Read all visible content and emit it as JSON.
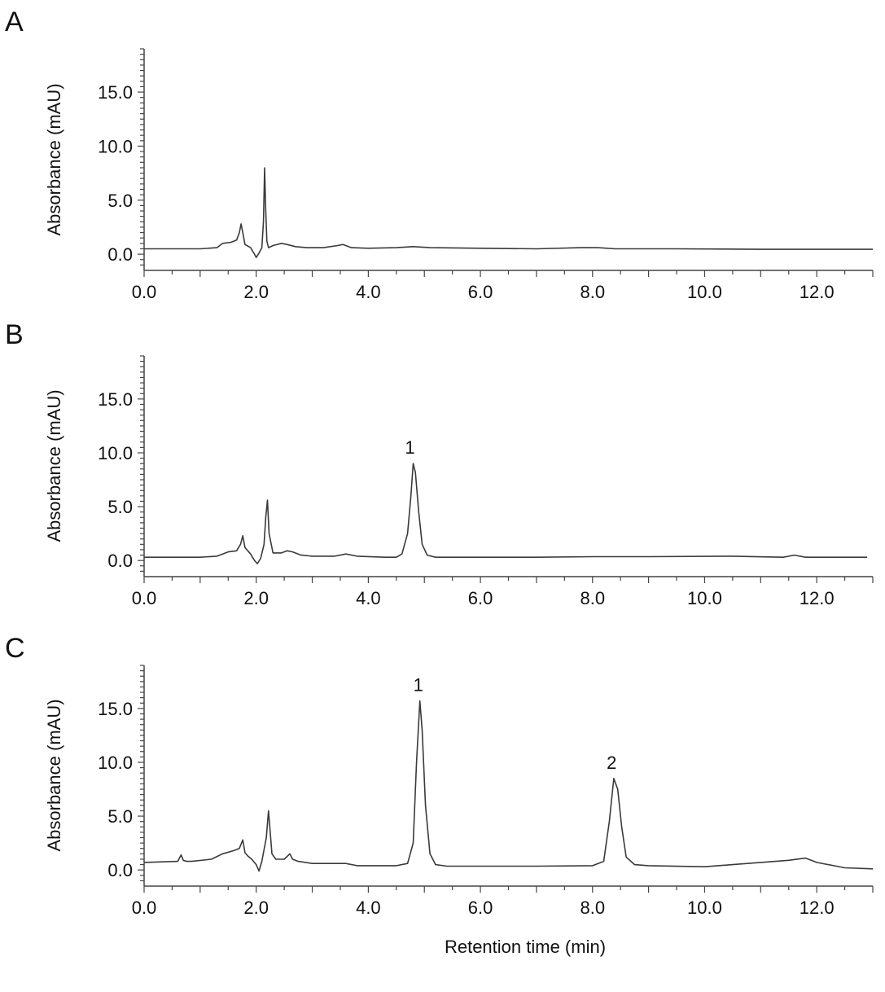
{
  "chart_data": [
    {
      "panel": "A",
      "type": "line",
      "xlabel": "",
      "ylabel": "Absorbance (mAU)",
      "xlim": [
        0,
        13
      ],
      "ylim": [
        -1.5,
        19
      ],
      "xticks": [
        {
          "v": 0,
          "label": "0.0"
        },
        {
          "v": 2,
          "label": "2.0"
        },
        {
          "v": 4,
          "label": "4.0"
        },
        {
          "v": 6,
          "label": "6.0"
        },
        {
          "v": 8,
          "label": "8.0"
        },
        {
          "v": 10,
          "label": "10.0"
        },
        {
          "v": 12,
          "label": "12.0"
        }
      ],
      "yticks": [
        {
          "v": 0,
          "label": "0.0"
        },
        {
          "v": 5,
          "label": "5.0"
        },
        {
          "v": 10,
          "label": "10.0"
        },
        {
          "v": 15,
          "label": "15.0"
        }
      ],
      "series": [
        {
          "color": "#3a3a3a",
          "x": [
            0.0,
            1.0,
            1.3,
            1.4,
            1.55,
            1.65,
            1.7,
            1.73,
            1.76,
            1.8,
            1.9,
            1.97,
            2.0,
            2.05,
            2.1,
            2.13,
            2.15,
            2.17,
            2.19,
            2.22,
            2.3,
            2.45,
            2.55,
            2.7,
            2.9,
            3.2,
            3.45,
            3.55,
            3.7,
            4.0,
            4.5,
            4.8,
            5.1,
            6.0,
            7.0,
            7.8,
            8.1,
            8.4,
            9.5,
            11.0,
            12.0,
            12.5,
            13.0
          ],
          "y": [
            0.5,
            0.5,
            0.6,
            1.0,
            1.1,
            1.3,
            2.0,
            2.8,
            2.0,
            0.9,
            0.6,
            0.0,
            -0.3,
            0.1,
            0.6,
            3.0,
            8.0,
            4.0,
            1.2,
            0.6,
            0.8,
            1.0,
            0.9,
            0.7,
            0.6,
            0.6,
            0.8,
            0.9,
            0.6,
            0.55,
            0.6,
            0.7,
            0.6,
            0.55,
            0.5,
            0.6,
            0.6,
            0.5,
            0.5,
            0.45,
            0.45,
            0.45,
            0.45
          ]
        }
      ],
      "annotations": []
    },
    {
      "panel": "B",
      "type": "line",
      "xlabel": "",
      "ylabel": "Absorbance (mAU)",
      "xlim": [
        0,
        13
      ],
      "ylim": [
        -1.5,
        19
      ],
      "xticks": [
        {
          "v": 0,
          "label": "0.0"
        },
        {
          "v": 2,
          "label": "2.0"
        },
        {
          "v": 4,
          "label": "4.0"
        },
        {
          "v": 6,
          "label": "6.0"
        },
        {
          "v": 8,
          "label": "8.0"
        },
        {
          "v": 10,
          "label": "10.0"
        },
        {
          "v": 12,
          "label": "12.0"
        }
      ],
      "yticks": [
        {
          "v": 0,
          "label": "0.0"
        },
        {
          "v": 5,
          "label": "5.0"
        },
        {
          "v": 10,
          "label": "10.0"
        },
        {
          "v": 15,
          "label": "15.0"
        }
      ],
      "series": [
        {
          "color": "#3a3a3a",
          "x": [
            0.0,
            1.0,
            1.3,
            1.5,
            1.65,
            1.72,
            1.76,
            1.8,
            1.9,
            1.97,
            2.02,
            2.08,
            2.14,
            2.17,
            2.2,
            2.23,
            2.3,
            2.45,
            2.55,
            2.65,
            2.8,
            3.0,
            3.4,
            3.6,
            3.8,
            4.3,
            4.5,
            4.6,
            4.7,
            4.76,
            4.8,
            4.84,
            4.9,
            4.96,
            5.05,
            5.2,
            6.0,
            7.0,
            8.0,
            9.0,
            10.5,
            11.4,
            11.6,
            11.8,
            12.5,
            12.9
          ],
          "y": [
            0.3,
            0.3,
            0.4,
            0.8,
            0.9,
            1.5,
            2.3,
            1.2,
            0.6,
            0.0,
            -0.3,
            0.2,
            1.5,
            4.0,
            5.6,
            2.5,
            0.7,
            0.7,
            0.9,
            0.8,
            0.5,
            0.4,
            0.4,
            0.6,
            0.4,
            0.3,
            0.3,
            0.6,
            2.5,
            6.0,
            9.0,
            8.2,
            4.5,
            1.5,
            0.5,
            0.3,
            0.3,
            0.3,
            0.35,
            0.35,
            0.4,
            0.3,
            0.5,
            0.3,
            0.3,
            0.3
          ]
        }
      ],
      "annotations": [
        {
          "label": "1",
          "x": 4.8,
          "y": 9.0
        }
      ]
    },
    {
      "panel": "C",
      "type": "line",
      "xlabel": "Retention time (min)",
      "ylabel": "Absorbance (mAU)",
      "xlim": [
        0,
        13
      ],
      "ylim": [
        -1.5,
        19
      ],
      "xticks": [
        {
          "v": 0,
          "label": "0.0"
        },
        {
          "v": 2,
          "label": "2.0"
        },
        {
          "v": 4,
          "label": "4.0"
        },
        {
          "v": 6,
          "label": "6.0"
        },
        {
          "v": 8,
          "label": "8.0"
        },
        {
          "v": 10,
          "label": "10.0"
        },
        {
          "v": 12,
          "label": "12.0"
        }
      ],
      "yticks": [
        {
          "v": 0,
          "label": "0.0"
        },
        {
          "v": 5,
          "label": "5.0"
        },
        {
          "v": 10,
          "label": "10.0"
        },
        {
          "v": 15,
          "label": "15.0"
        }
      ],
      "series": [
        {
          "color": "#3a3a3a",
          "x": [
            0.0,
            0.6,
            0.66,
            0.7,
            0.76,
            0.85,
            1.2,
            1.4,
            1.6,
            1.7,
            1.76,
            1.8,
            1.85,
            1.92,
            2.0,
            2.05,
            2.1,
            2.18,
            2.22,
            2.25,
            2.28,
            2.35,
            2.5,
            2.6,
            2.65,
            2.75,
            3.0,
            3.6,
            3.8,
            4.5,
            4.7,
            4.8,
            4.86,
            4.92,
            4.96,
            5.02,
            5.1,
            5.2,
            5.4,
            6.0,
            7.0,
            8.0,
            8.2,
            8.3,
            8.38,
            8.45,
            8.52,
            8.6,
            8.75,
            9.0,
            10.0,
            10.5,
            11.0,
            11.5,
            11.8,
            12.0,
            12.5,
            13.0
          ],
          "y": [
            0.7,
            0.8,
            1.4,
            0.9,
            0.8,
            0.8,
            1.0,
            1.5,
            1.8,
            2.0,
            2.8,
            1.6,
            1.3,
            1.0,
            0.5,
            -0.1,
            0.8,
            3.0,
            5.5,
            3.5,
            1.5,
            1.0,
            1.0,
            1.5,
            1.0,
            0.8,
            0.6,
            0.6,
            0.4,
            0.4,
            0.6,
            2.5,
            10.0,
            15.7,
            13.0,
            6.0,
            1.5,
            0.5,
            0.35,
            0.35,
            0.35,
            0.4,
            0.8,
            4.5,
            8.5,
            7.5,
            4.0,
            1.2,
            0.5,
            0.4,
            0.3,
            0.5,
            0.7,
            0.9,
            1.1,
            0.7,
            0.2,
            0.1
          ]
        }
      ],
      "annotations": [
        {
          "label": "1",
          "x": 4.95,
          "y": 15.7
        },
        {
          "label": "2",
          "x": 8.4,
          "y": 8.5
        }
      ]
    }
  ]
}
